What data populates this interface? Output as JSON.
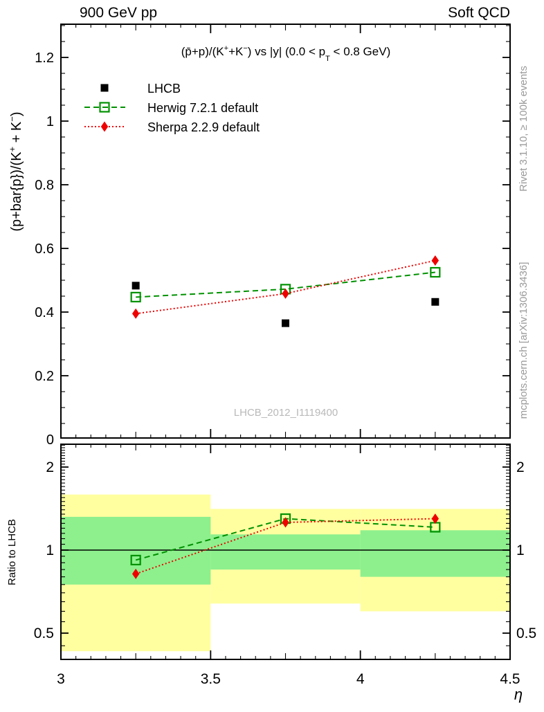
{
  "header": {
    "left": "900 GeV pp",
    "right": "Soft QCD"
  },
  "side_notes": {
    "top_right": "Rivet 3.1.10, ≥ 100k events",
    "bottom_right": "mcplots.cern.ch [arXiv:1306.3436]"
  },
  "watermark": "LHCB_2012_I1119400",
  "colors": {
    "lhcb": "#000000",
    "herwig": "#009100",
    "sherpa": "#ee0000",
    "band_yellow": "#ffffa0",
    "band_green": "#8df08d",
    "axis": "#000000",
    "note_gray": "#9a9a9a",
    "watermark_gray": "#b9b9b9"
  },
  "chart_data": {
    "type": "line",
    "title": "(p̄+p)/(K⁺+K⁻) vs |y| (0.0 < p_T < 0.8 GeV)",
    "title_parts": {
      "p1": "(p̄+p)/(K",
      "sup1": "+",
      "p2": "+K",
      "sup2": "−",
      "p3": ") vs |y| (0.0 < p",
      "sub1": "T",
      "p4": " < 0.8 GeV)"
    },
    "xlabel": "η",
    "xlim": [
      3,
      4.5
    ],
    "x_major_ticks": [
      3,
      3.5,
      4,
      4.5
    ],
    "x_tick_labels": [
      "3",
      "3.5",
      "4",
      "4.5"
    ],
    "x": [
      3.25,
      3.75,
      4.25
    ],
    "main_panel": {
      "ylabel_parts": {
        "p1": "(p+bar{p})/(K",
        "sup1": "+",
        "p2": " + K",
        "sup2": "−",
        "p3": ")"
      },
      "ylim": [
        0,
        1.3
      ],
      "y_major_ticks": [
        0,
        0.2,
        0.4,
        0.6,
        0.8,
        1.0,
        1.2
      ],
      "y_tick_labels": [
        "0",
        "0.2",
        "0.4",
        "0.6",
        "0.8",
        "1",
        "1.2"
      ],
      "series": [
        {
          "name": "LHCB",
          "role": "data",
          "marker": "filled-square",
          "color": "#000000",
          "line": "none",
          "values": [
            0.483,
            0.365,
            0.432
          ]
        },
        {
          "name": "Herwig 7.2.1 default",
          "role": "mc",
          "marker": "open-square",
          "color": "#009100",
          "line": "dashed",
          "values": [
            0.447,
            0.472,
            0.525
          ]
        },
        {
          "name": "Sherpa 2.2.9 default",
          "role": "mc",
          "marker": "filled-diamond",
          "color": "#ee0000",
          "line": "dotted",
          "values": [
            0.395,
            0.458,
            0.562
          ]
        }
      ]
    },
    "ratio_panel": {
      "ylabel": "Ratio to LHCB",
      "scale": "log",
      "ylim": [
        0.4,
        2.42
      ],
      "y_major_ticks": [
        0.5,
        1,
        2
      ],
      "y_tick_labels": [
        "0.5",
        "1",
        "2"
      ],
      "reference_line": 1,
      "bands": {
        "bin_edges": [
          3.0,
          3.5,
          4.0,
          4.5
        ],
        "yellow": [
          [
            0.43,
            1.59
          ],
          [
            0.64,
            1.41
          ],
          [
            0.6,
            1.41
          ]
        ],
        "green": [
          [
            0.75,
            1.32
          ],
          [
            0.85,
            1.14
          ],
          [
            0.8,
            1.18
          ]
        ]
      },
      "series": [
        {
          "name": "Herwig 7.2.1 default",
          "marker": "open-square",
          "color": "#009100",
          "line": "dashed",
          "values": [
            0.92,
            1.3,
            1.21
          ]
        },
        {
          "name": "Sherpa 2.2.9 default",
          "marker": "filled-diamond",
          "color": "#ee0000",
          "line": "dotted",
          "values": [
            0.82,
            1.26,
            1.3
          ]
        }
      ]
    },
    "legend": {
      "entries": [
        "LHCB",
        "Herwig 7.2.1 default",
        "Sherpa 2.2.9 default"
      ]
    }
  }
}
